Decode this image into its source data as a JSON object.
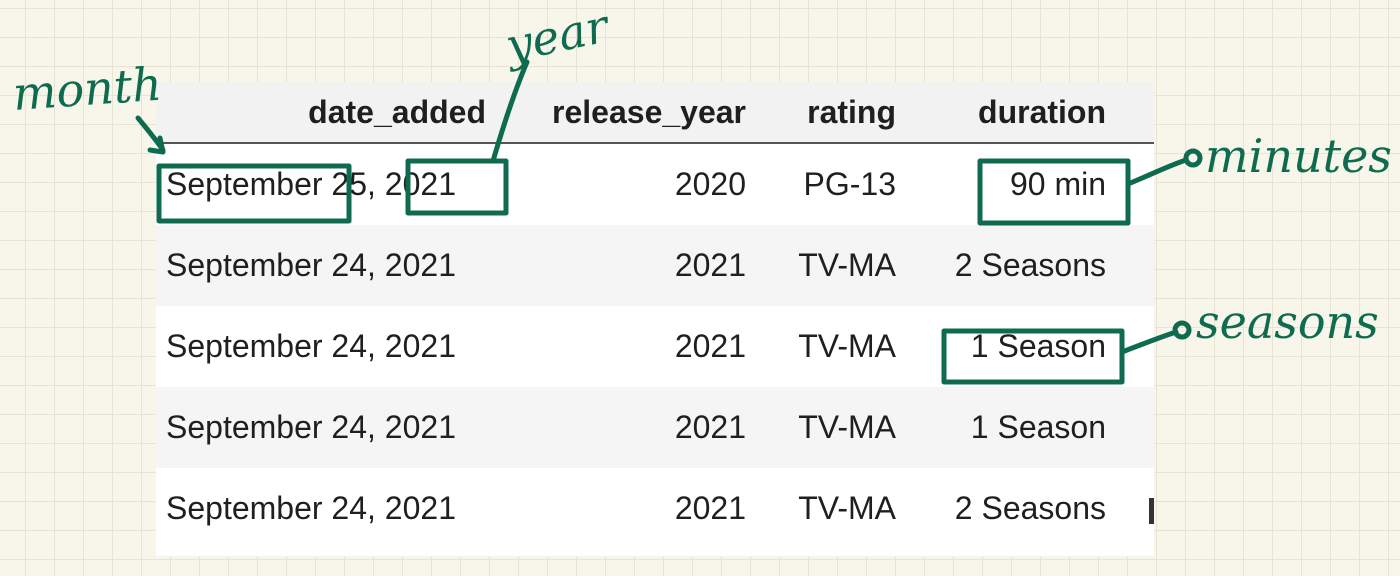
{
  "table": {
    "columns": [
      "date_added",
      "release_year",
      "rating",
      "duration"
    ],
    "rows": [
      {
        "date_added": "September 25, 2021",
        "release_year": "2020",
        "rating": "PG-13",
        "duration": "90 min"
      },
      {
        "date_added": "September 24, 2021",
        "release_year": "2021",
        "rating": "TV-MA",
        "duration": "2 Seasons"
      },
      {
        "date_added": "September 24, 2021",
        "release_year": "2021",
        "rating": "TV-MA",
        "duration": "1 Season"
      },
      {
        "date_added": "September 24, 2021",
        "release_year": "2021",
        "rating": "TV-MA",
        "duration": "1 Season"
      },
      {
        "date_added": "September 24, 2021",
        "release_year": "2021",
        "rating": "TV-MA",
        "duration": "2 Seasons"
      }
    ]
  },
  "annotations": {
    "month": "month",
    "year": "year",
    "minutes": "minutes",
    "seasons": "seasons"
  },
  "colors": {
    "annotation_ink": "#0f6b4f",
    "paper": "#f8f6ea",
    "grid": "#e7e4d3"
  }
}
